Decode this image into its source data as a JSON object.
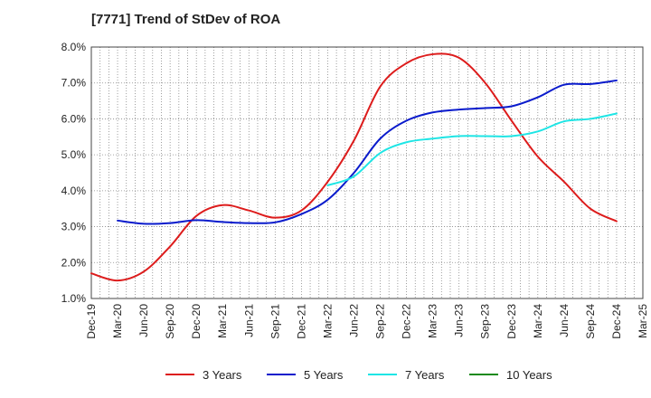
{
  "chart_data": {
    "type": "line",
    "title": "[7771]  Trend of StDev of ROA",
    "xlabel": "",
    "ylabel": "",
    "x_ticks": [
      "Dec-19",
      "Mar-20",
      "Jun-20",
      "Sep-20",
      "Dec-20",
      "Mar-21",
      "Jun-21",
      "Sep-21",
      "Dec-21",
      "Mar-22",
      "Jun-22",
      "Sep-22",
      "Dec-22",
      "Mar-23",
      "Jun-23",
      "Sep-23",
      "Dec-23",
      "Mar-24",
      "Jun-24",
      "Sep-24",
      "Dec-24",
      "Mar-25"
    ],
    "y_ticks": [
      "1.0%",
      "2.0%",
      "3.0%",
      "4.0%",
      "5.0%",
      "6.0%",
      "7.0%",
      "8.0%"
    ],
    "ylim": [
      1.0,
      8.0
    ],
    "grid": true,
    "legend_position": "bottom",
    "series": [
      {
        "name": "3 Years",
        "color": "#dd1c1c",
        "values": [
          1.7,
          1.5,
          1.75,
          2.45,
          3.3,
          3.6,
          3.45,
          3.25,
          3.45,
          4.25,
          5.4,
          6.9,
          7.55,
          7.8,
          7.7,
          7.0,
          5.95,
          4.95,
          4.25,
          3.5,
          3.15,
          null
        ]
      },
      {
        "name": "5 Years",
        "color": "#0a1bcc",
        "values": [
          null,
          3.17,
          3.08,
          3.1,
          3.18,
          3.13,
          3.1,
          3.12,
          3.35,
          3.75,
          4.5,
          5.45,
          5.95,
          6.18,
          6.26,
          6.3,
          6.35,
          6.6,
          6.95,
          6.97,
          7.07,
          null
        ]
      },
      {
        "name": "7 Years",
        "color": "#1ee5e5",
        "values": [
          null,
          null,
          null,
          null,
          null,
          null,
          null,
          null,
          null,
          4.15,
          4.4,
          5.05,
          5.35,
          5.45,
          5.52,
          5.52,
          5.52,
          5.65,
          5.93,
          6.0,
          6.15,
          null
        ]
      },
      {
        "name": "10 Years",
        "color": "#1a8a1a",
        "values": [
          null,
          null,
          null,
          null,
          null,
          null,
          null,
          null,
          null,
          null,
          null,
          null,
          null,
          null,
          null,
          null,
          null,
          null,
          null,
          null,
          null,
          null
        ]
      }
    ]
  }
}
